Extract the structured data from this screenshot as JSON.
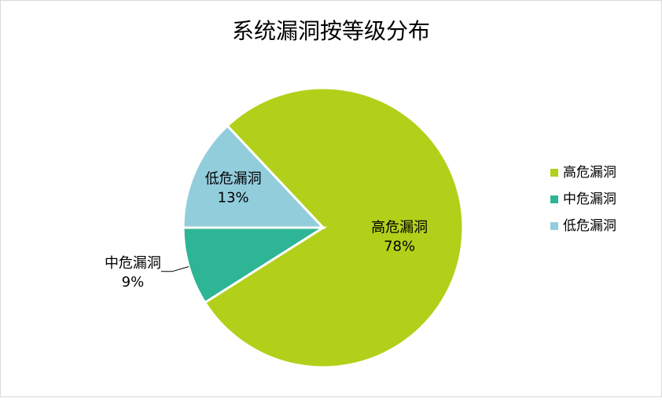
{
  "chart_data": {
    "type": "pie",
    "title": "系统漏洞按等级分布",
    "categories": [
      "高危漏洞",
      "中危漏洞",
      "低危漏洞"
    ],
    "values": [
      78,
      9,
      13
    ],
    "value_labels": [
      "78%",
      "9%",
      "13%"
    ],
    "colors": [
      "#b2d01a",
      "#2db595",
      "#92cddc"
    ],
    "legend": "right"
  }
}
